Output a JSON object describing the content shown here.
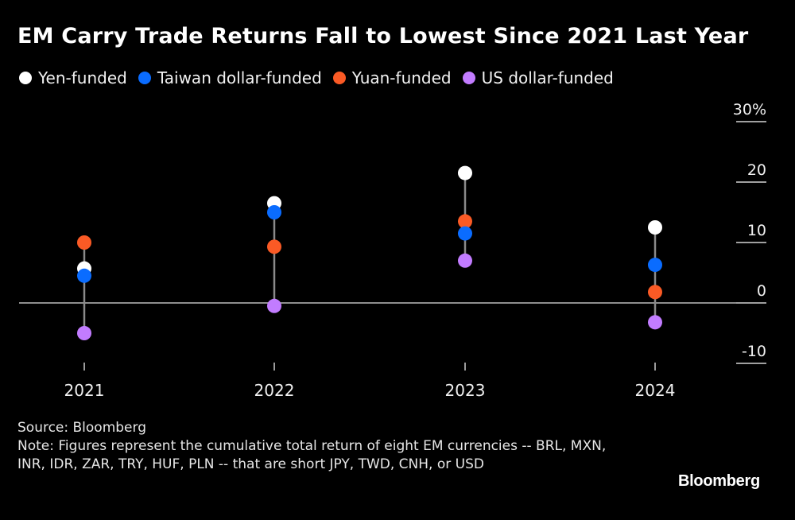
{
  "title": "EM Carry Trade Returns Fall to Lowest Since 2021 Last Year",
  "legend": [
    {
      "label": "Yen-funded",
      "color": "#ffffff"
    },
    {
      "label": "Taiwan dollar-funded",
      "color": "#0a6cff"
    },
    {
      "label": "Yuan-funded",
      "color": "#fa5a25"
    },
    {
      "label": "US dollar-funded",
      "color": "#c27cff"
    }
  ],
  "chart_data": {
    "type": "scatter",
    "title": "EM Carry Trade Returns Fall to Lowest Since 2021 Last Year",
    "categories": [
      "2021",
      "2022",
      "2023",
      "2024"
    ],
    "series": [
      {
        "name": "Yen-funded",
        "color": "#ffffff",
        "values": [
          5.7,
          16.5,
          21.5,
          12.5
        ]
      },
      {
        "name": "Taiwan dollar-funded",
        "color": "#0a6cff",
        "values": [
          4.5,
          15.0,
          11.5,
          6.3
        ]
      },
      {
        "name": "Yuan-funded",
        "color": "#fa5a25",
        "values": [
          10.0,
          9.3,
          13.5,
          1.8
        ]
      },
      {
        "name": "US dollar-funded",
        "color": "#c27cff",
        "values": [
          -5.0,
          -0.5,
          7.0,
          -3.2
        ]
      }
    ],
    "y_ticks": [
      30,
      20,
      10,
      0,
      -10
    ],
    "y_tick_labels": [
      "30%",
      "20",
      "10",
      "0",
      "-10"
    ],
    "ylim": [
      -10,
      30
    ],
    "xlabel": "",
    "ylabel": "",
    "legend_position": "top-left",
    "zero_line": true
  },
  "footer": {
    "source": "Source: Bloomberg",
    "note": "Note: Figures represent the cumulative total return of eight EM currencies -- BRL, MXN, INR, IDR, ZAR, TRY, HUF, PLN -- that are short JPY, TWD, CNH, or USD"
  },
  "brand": "Bloomberg"
}
